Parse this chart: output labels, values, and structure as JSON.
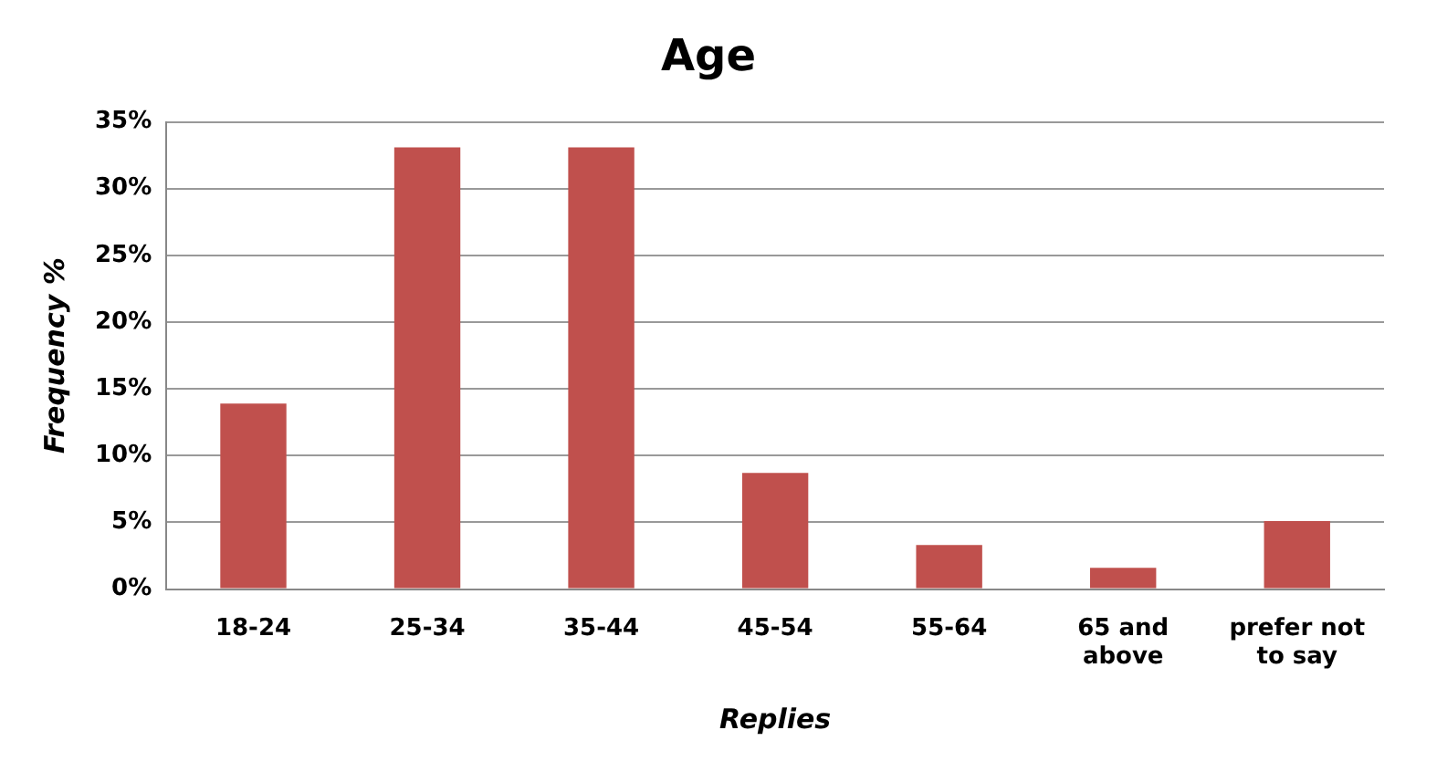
{
  "chart_data": {
    "type": "bar",
    "title": "Age",
    "xlabel": "Replies",
    "ylabel": "Frequency %",
    "categories": [
      "18-24",
      "25-34",
      "35-44",
      "45-54",
      "55-64",
      "65 and above",
      "prefer not to say"
    ],
    "values": [
      13.9,
      33.1,
      33.1,
      8.7,
      3.3,
      1.6,
      5.1
    ],
    "color": "#c0504d",
    "ylim": [
      0,
      35
    ],
    "yticks": [
      {
        "value": 0,
        "label": "0%"
      },
      {
        "value": 5,
        "label": "5%"
      },
      {
        "value": 10,
        "label": "10%"
      },
      {
        "value": 15,
        "label": "15%"
      },
      {
        "value": 20,
        "label": "20%"
      },
      {
        "value": 25,
        "label": "25%"
      },
      {
        "value": 30,
        "label": "30%"
      },
      {
        "value": 35,
        "label": "35%"
      }
    ],
    "grid": "y",
    "legend": false
  }
}
